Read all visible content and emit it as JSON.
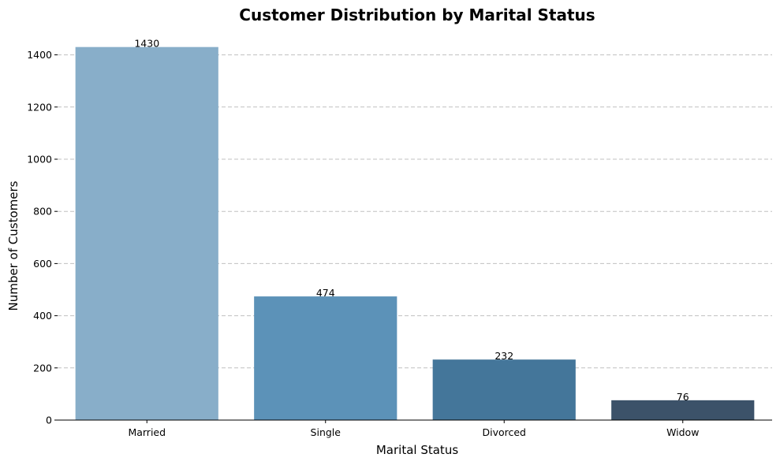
{
  "chart_data": {
    "type": "bar",
    "title": "Customer Distribution by Marital Status",
    "xlabel": "Marital Status",
    "ylabel": "Number of Customers",
    "categories": [
      "Married",
      "Single",
      "Divorced",
      "Widow"
    ],
    "values": [
      1430,
      474,
      232,
      76
    ],
    "data_labels": [
      "1430",
      "474",
      "232",
      "76"
    ],
    "yticks": [
      0,
      200,
      400,
      600,
      800,
      1000,
      1200,
      1400
    ],
    "ylim": [
      0,
      1501.5
    ],
    "grid": "y-dashed",
    "legend": "none",
    "colors": [
      "#88aec9",
      "#5c92b8",
      "#44769a",
      "#3c5269"
    ]
  }
}
